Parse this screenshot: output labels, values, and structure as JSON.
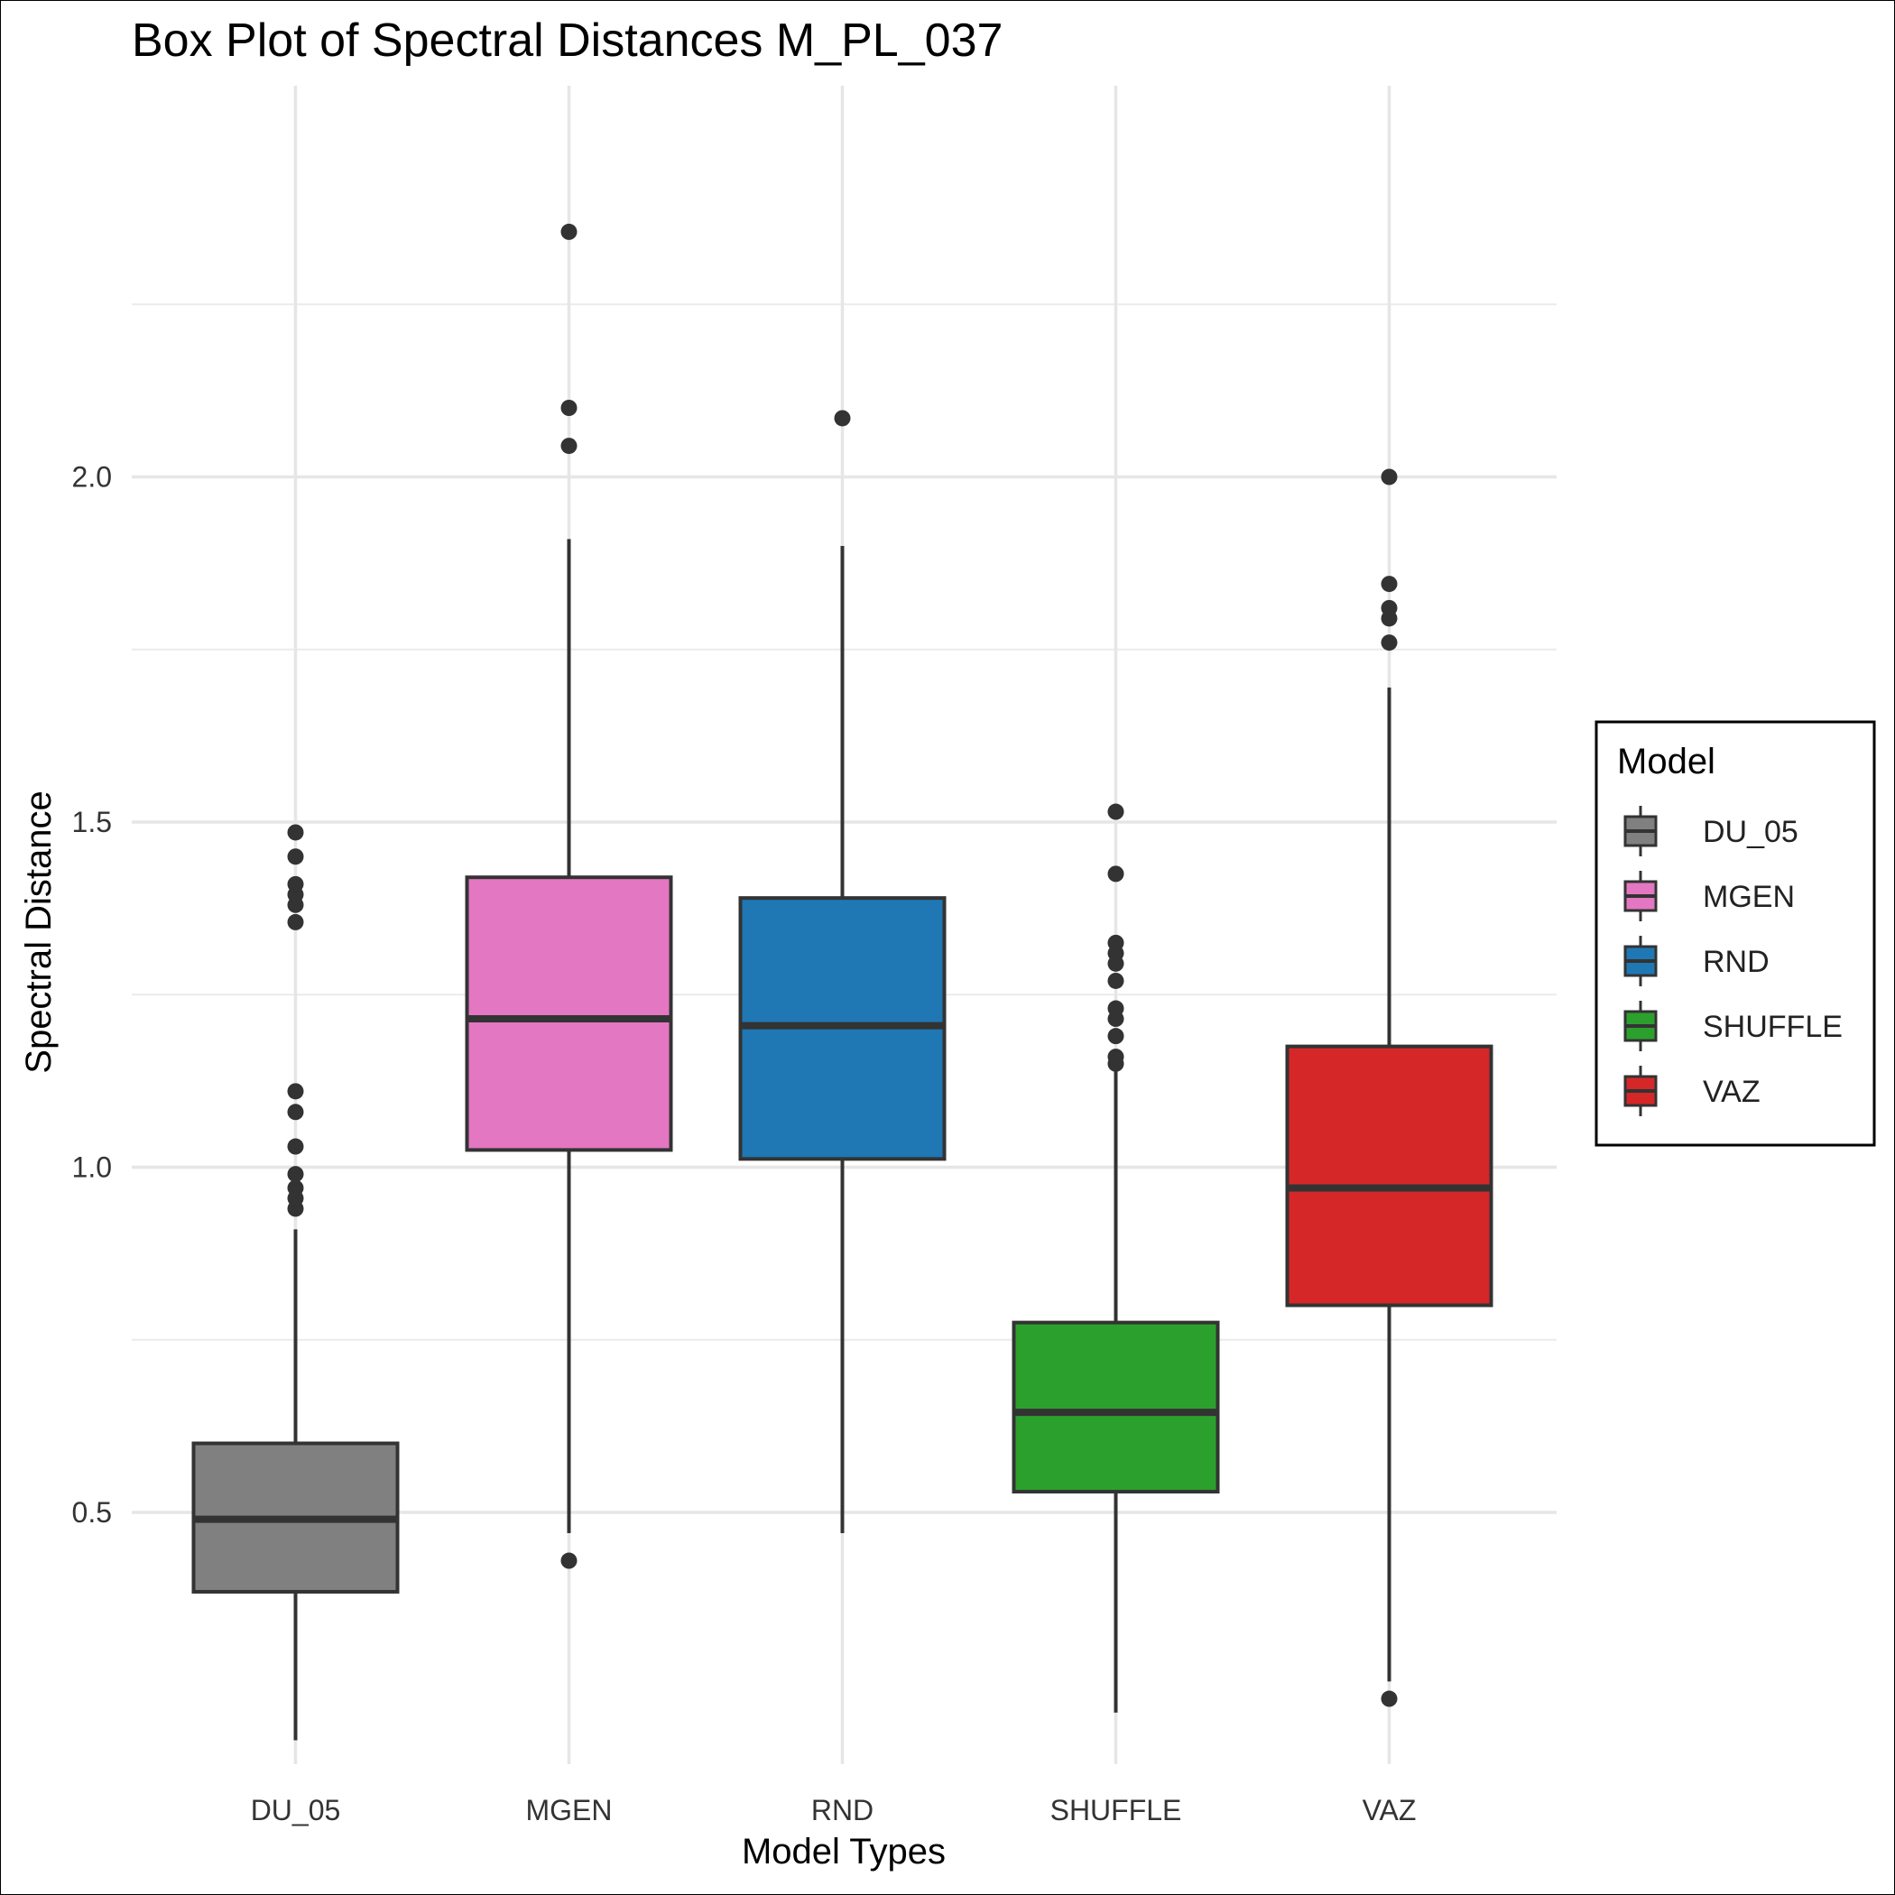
{
  "chart_data": {
    "type": "box",
    "title": "Box Plot of Spectral Distances M_PL_037",
    "xlabel": "Model Types",
    "ylabel": "Spectral Distance",
    "ylim": [
      0.1,
      2.46
    ],
    "yticks": [
      0.5,
      1.0,
      1.5,
      2.0
    ],
    "ytick_labels": [
      "0.5",
      "1.0",
      "1.5",
      "2.0"
    ],
    "minor_yticks": [
      0.75,
      1.25,
      1.75,
      2.25
    ],
    "grid": true,
    "legend": {
      "title": "Model",
      "position": "right"
    },
    "categories": [
      "DU_05",
      "MGEN",
      "RND",
      "SHUFFLE",
      "VAZ"
    ],
    "series": [
      {
        "name": "DU_05",
        "color": "#808080",
        "whisker_low": 0.17,
        "q1": 0.385,
        "median": 0.49,
        "q3": 0.6,
        "whisker_high": 0.91,
        "outliers": [
          0.94,
          0.955,
          0.97,
          0.99,
          1.03,
          1.08,
          1.11,
          1.355,
          1.38,
          1.395,
          1.41,
          1.45,
          1.485
        ]
      },
      {
        "name": "MGEN",
        "color": "#E377C2",
        "whisker_low": 0.47,
        "q1": 1.025,
        "median": 1.215,
        "q3": 1.42,
        "whisker_high": 1.91,
        "outliers": [
          0.43,
          2.045,
          2.1,
          2.355
        ]
      },
      {
        "name": "RND",
        "color": "#1F77B4",
        "whisker_low": 0.47,
        "q1": 1.012,
        "median": 1.205,
        "q3": 1.39,
        "whisker_high": 1.9,
        "outliers": [
          2.085
        ]
      },
      {
        "name": "SHUFFLE",
        "color": "#2CA02C",
        "whisker_low": 0.21,
        "q1": 0.53,
        "median": 0.645,
        "q3": 0.775,
        "whisker_high": 1.14,
        "outliers": [
          1.15,
          1.16,
          1.19,
          1.215,
          1.23,
          1.27,
          1.295,
          1.31,
          1.325,
          1.425,
          1.515
        ]
      },
      {
        "name": "VAZ",
        "color": "#D62728",
        "whisker_low": 0.255,
        "q1": 0.8,
        "median": 0.97,
        "q3": 1.175,
        "whisker_high": 1.695,
        "outliers": [
          0.23,
          1.76,
          1.795,
          1.81,
          1.845,
          2.0
        ]
      }
    ]
  }
}
